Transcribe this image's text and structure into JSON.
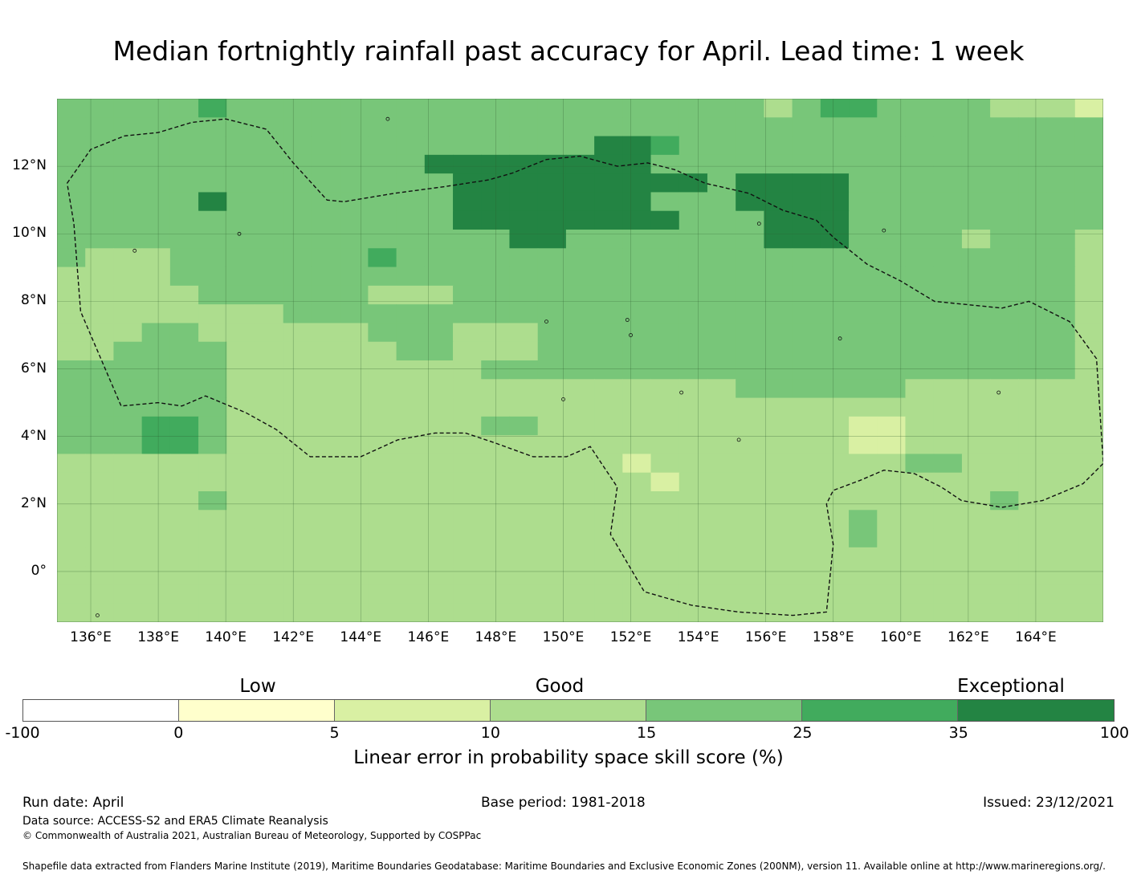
{
  "title": "Median fortnightly rainfall past accuracy for April. Lead time: 1 week",
  "lat_ticks": [
    "12°N",
    "10°N",
    "8°N",
    "6°N",
    "4°N",
    "2°N",
    "0°"
  ],
  "lon_ticks": [
    "136°E",
    "138°E",
    "140°E",
    "142°E",
    "144°E",
    "146°E",
    "148°E",
    "150°E",
    "152°E",
    "154°E",
    "156°E",
    "158°E",
    "160°E",
    "162°E",
    "164°E"
  ],
  "colorbar": {
    "categories": {
      "low": "Low",
      "good": "Good",
      "exceptional": "Exceptional"
    },
    "bounds": [
      "-100",
      "0",
      "5",
      "10",
      "15",
      "25",
      "35",
      "100"
    ],
    "colors": [
      "#ffffff",
      "#ffffcc",
      "#d9f0a3",
      "#addd8e",
      "#78c679",
      "#41ab5d",
      "#238443"
    ],
    "label": "Linear error in probability space skill score (%)"
  },
  "footer": {
    "run_date": "Run date: April",
    "base_period": "Base period: 1981-2018",
    "issued": "Issued: 23/12/2021",
    "data_source": "Data source: ACCESS-S2 and ERA5 Climate Reanalysis",
    "copyright": "© Commonwealth of Australia 2021, Australian Bureau of Meteorology, Supported by COSPPac",
    "shapefile": "Shapefile data extracted from Flanders Marine Institute (2019), Maritime Boundaries Geodatabase: Maritime Boundaries and Exclusive Economic Zones (200NM), version 11. Available online at http://www.marineregions.org/."
  },
  "chart_data": {
    "type": "heatmap",
    "extent": {
      "lon_min": 135,
      "lon_max": 166,
      "lat_min": -1.5,
      "lat_max": 14
    },
    "class_bounds": [
      -100,
      0,
      5,
      10,
      15,
      25,
      35,
      100
    ],
    "grid_lon_step": 2,
    "grid_lat_step": 2,
    "cell_columns": 37,
    "cell_rows": 28,
    "cell_classes_note": "class index 0-6 per bound interval, rows north to south",
    "cells": [
      "4444454444444444444444444345544443332",
      "4444444444444444444444444444444444444",
      "4444444444444444444665444444444444444",
      "4444444444444666666664444444444444444",
      "4444444444444466666666646666444444444",
      "4444464444444466666664446666444444444",
      "4444444444444466666666444666444444444",
      "4444444444444444664444444666444434443",
      "4333444444454444444444444444444444443",
      "3333444444444444444444444444444444443",
      "3333344444433344444444444444444444443",
      "3333333344444444444444444444444444443",
      "3334433333344433344444444444444444443",
      "3344443333334433344444444444444444443",
      "4444443333333334444444444444444444443",
      "4444443333333333333333334444443333333",
      "4444443333333333333333333333333333333",
      "4445543333333334433333333333223333333",
      "4445543333333333333333333333223333333",
      "3333333333333333333323333333334433333",
      "3333333333333333333332333333333333333",
      "3333343333333333333333333333333334333",
      "3333333333333333333333333333433333333",
      "3333333333333333333333333333433333333",
      "3333333333333333333333333333333333333",
      "3333333333333333333333333333333333333",
      "3333333333333333333333333333333333333",
      "3333333333333333333333333333333333333"
    ]
  }
}
